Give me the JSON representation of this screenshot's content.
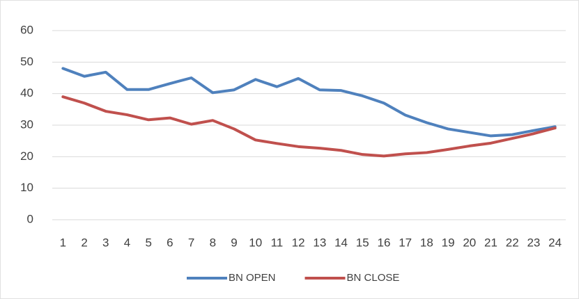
{
  "chart_data": {
    "type": "line",
    "categories": [
      "1",
      "2",
      "3",
      "4",
      "5",
      "6",
      "7",
      "8",
      "9",
      "10",
      "11",
      "12",
      "13",
      "14",
      "15",
      "16",
      "17",
      "18",
      "19",
      "20",
      "21",
      "22",
      "23",
      "24"
    ],
    "series": [
      {
        "name": "BN OPEN",
        "color": "#4f81bd",
        "values": [
          48,
          45.5,
          46.8,
          41.3,
          41.3,
          43.2,
          45,
          40.3,
          41.2,
          44.5,
          42.2,
          44.8,
          41.2,
          41,
          39.3,
          37,
          33.2,
          30.8,
          28.8,
          27.7,
          26.6,
          27,
          28.3,
          29.5
        ]
      },
      {
        "name": "BN CLOSE",
        "color": "#c0504d",
        "values": [
          39,
          37,
          34.4,
          33.3,
          31.7,
          32.3,
          30.3,
          31.5,
          28.8,
          25.3,
          24.2,
          23.2,
          22.7,
          22,
          20.7,
          20.2,
          20.9,
          21.3,
          22.3,
          23.4,
          24.3,
          25.8,
          27.3,
          29.1
        ]
      }
    ],
    "ylim": [
      0,
      60
    ],
    "yticks": [
      0,
      10,
      20,
      30,
      40,
      50,
      60
    ],
    "grid": true,
    "legend": "bottom"
  }
}
